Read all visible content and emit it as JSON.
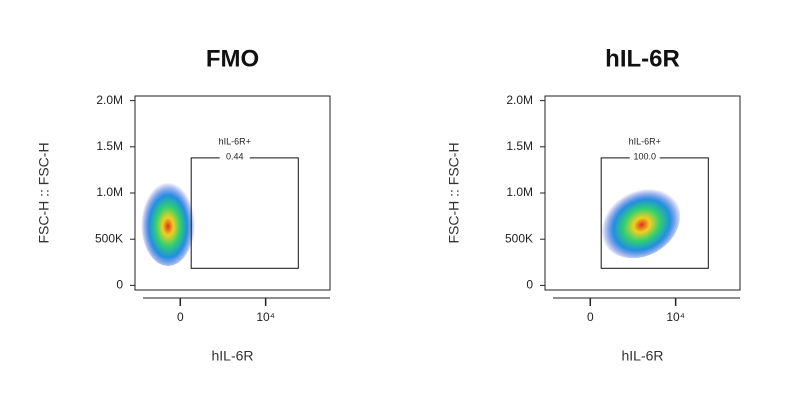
{
  "chart_data": [
    {
      "type": "scatter",
      "title": "FMO",
      "x_label": "hIL-6R",
      "y_label": "FSC-H :: FSC-H",
      "xscale": "biexponential",
      "xlim": [
        -1000,
        400000
      ],
      "xticks": [
        0,
        {
          "value": 10000,
          "label": "10⁴"
        }
      ],
      "ylim": [
        -50000,
        2050000
      ],
      "yticks": [
        0,
        {
          "value": 500000,
          "label": "500K"
        },
        {
          "value": 1000000,
          "label": "1.0M"
        },
        {
          "value": 1500000,
          "label": "1.5M"
        },
        {
          "value": 2000000,
          "label": "2.0M"
        }
      ],
      "gate": {
        "label": "hIL-6R+",
        "value": 0.44,
        "xlim": [
          100,
          65000
        ],
        "ylim": [
          185000,
          1380000
        ]
      }
    },
    {
      "type": "scatter",
      "title": "hIL-6R",
      "x_label": "hIL-6R",
      "y_label": "FSC-H :: FSC-H",
      "xscale": "biexponential",
      "xlim": [
        -1000,
        400000
      ],
      "xticks": [
        0,
        {
          "value": 10000,
          "label": "10⁴"
        }
      ],
      "ylim": [
        -50000,
        2050000
      ],
      "yticks": [
        0,
        {
          "value": 500000,
          "label": "500K"
        },
        {
          "value": 1000000,
          "label": "1.0M"
        },
        {
          "value": 1500000,
          "label": "1.5M"
        },
        {
          "value": 2000000,
          "label": "2.0M"
        }
      ],
      "gate": {
        "label": "hIL-6R+",
        "value": 100,
        "value_label": "100.0",
        "xlim": [
          100,
          65000
        ],
        "ylim": [
          185000,
          1380000
        ]
      }
    }
  ]
}
